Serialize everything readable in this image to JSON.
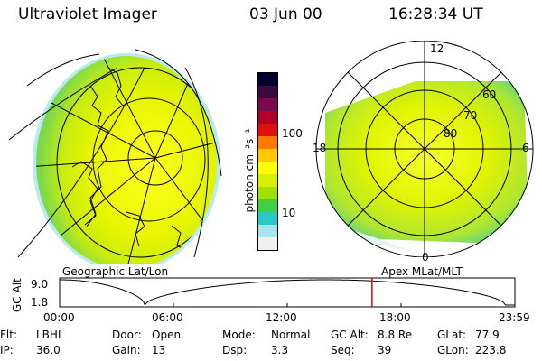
{
  "header": {
    "title": "Ultraviolet Imager",
    "date": "03 Jun 00",
    "time": "16:28:34 UT"
  },
  "left_panel": {
    "label": "Geographic Lat/Lon"
  },
  "right_panel": {
    "label": "Apex MLat/MLT",
    "mlt_labels": {
      "top": "12",
      "bottom": "0",
      "left": "18",
      "right": "6"
    },
    "lat_labels": [
      "60",
      "70",
      "80"
    ]
  },
  "colorbar": {
    "label": "photon cm⁻²s⁻¹",
    "ticks": [
      "100",
      "10"
    ],
    "colors": [
      "#000033",
      "#3d0a3d",
      "#7a0a4d",
      "#b0002a",
      "#e01010",
      "#ff7a00",
      "#ffc800",
      "#ffff00",
      "#d8f000",
      "#9ee000",
      "#3fd040",
      "#28c8c8",
      "#a8e4f0",
      "#f0f0f0"
    ]
  },
  "altitude_plot": {
    "ylabel": "GC Alt",
    "yticks": [
      "9.0",
      "1.8"
    ],
    "xticks": [
      "00:00",
      "06:00",
      "12:00",
      "18:00",
      "23:59"
    ],
    "current_time_hours": 16.47,
    "marker_color": "#e00000"
  },
  "info": {
    "row1": [
      {
        "k": "Flt:",
        "v": "LBHL"
      },
      {
        "k": "Door:",
        "v": "Open"
      },
      {
        "k": "Mode:",
        "v": "Normal"
      },
      {
        "k": "GC Alt:",
        "v": "8.8 Re"
      },
      {
        "k": "GLat:",
        "v": "77.9"
      }
    ],
    "row2": [
      {
        "k": "IP:",
        "v": "36.0"
      },
      {
        "k": "Gain:",
        "v": "13"
      },
      {
        "k": "Dsp:",
        "v": "3.3"
      },
      {
        "k": "Seq:",
        "v": "39"
      },
      {
        "k": "GLon:",
        "v": "223.8"
      }
    ]
  }
}
